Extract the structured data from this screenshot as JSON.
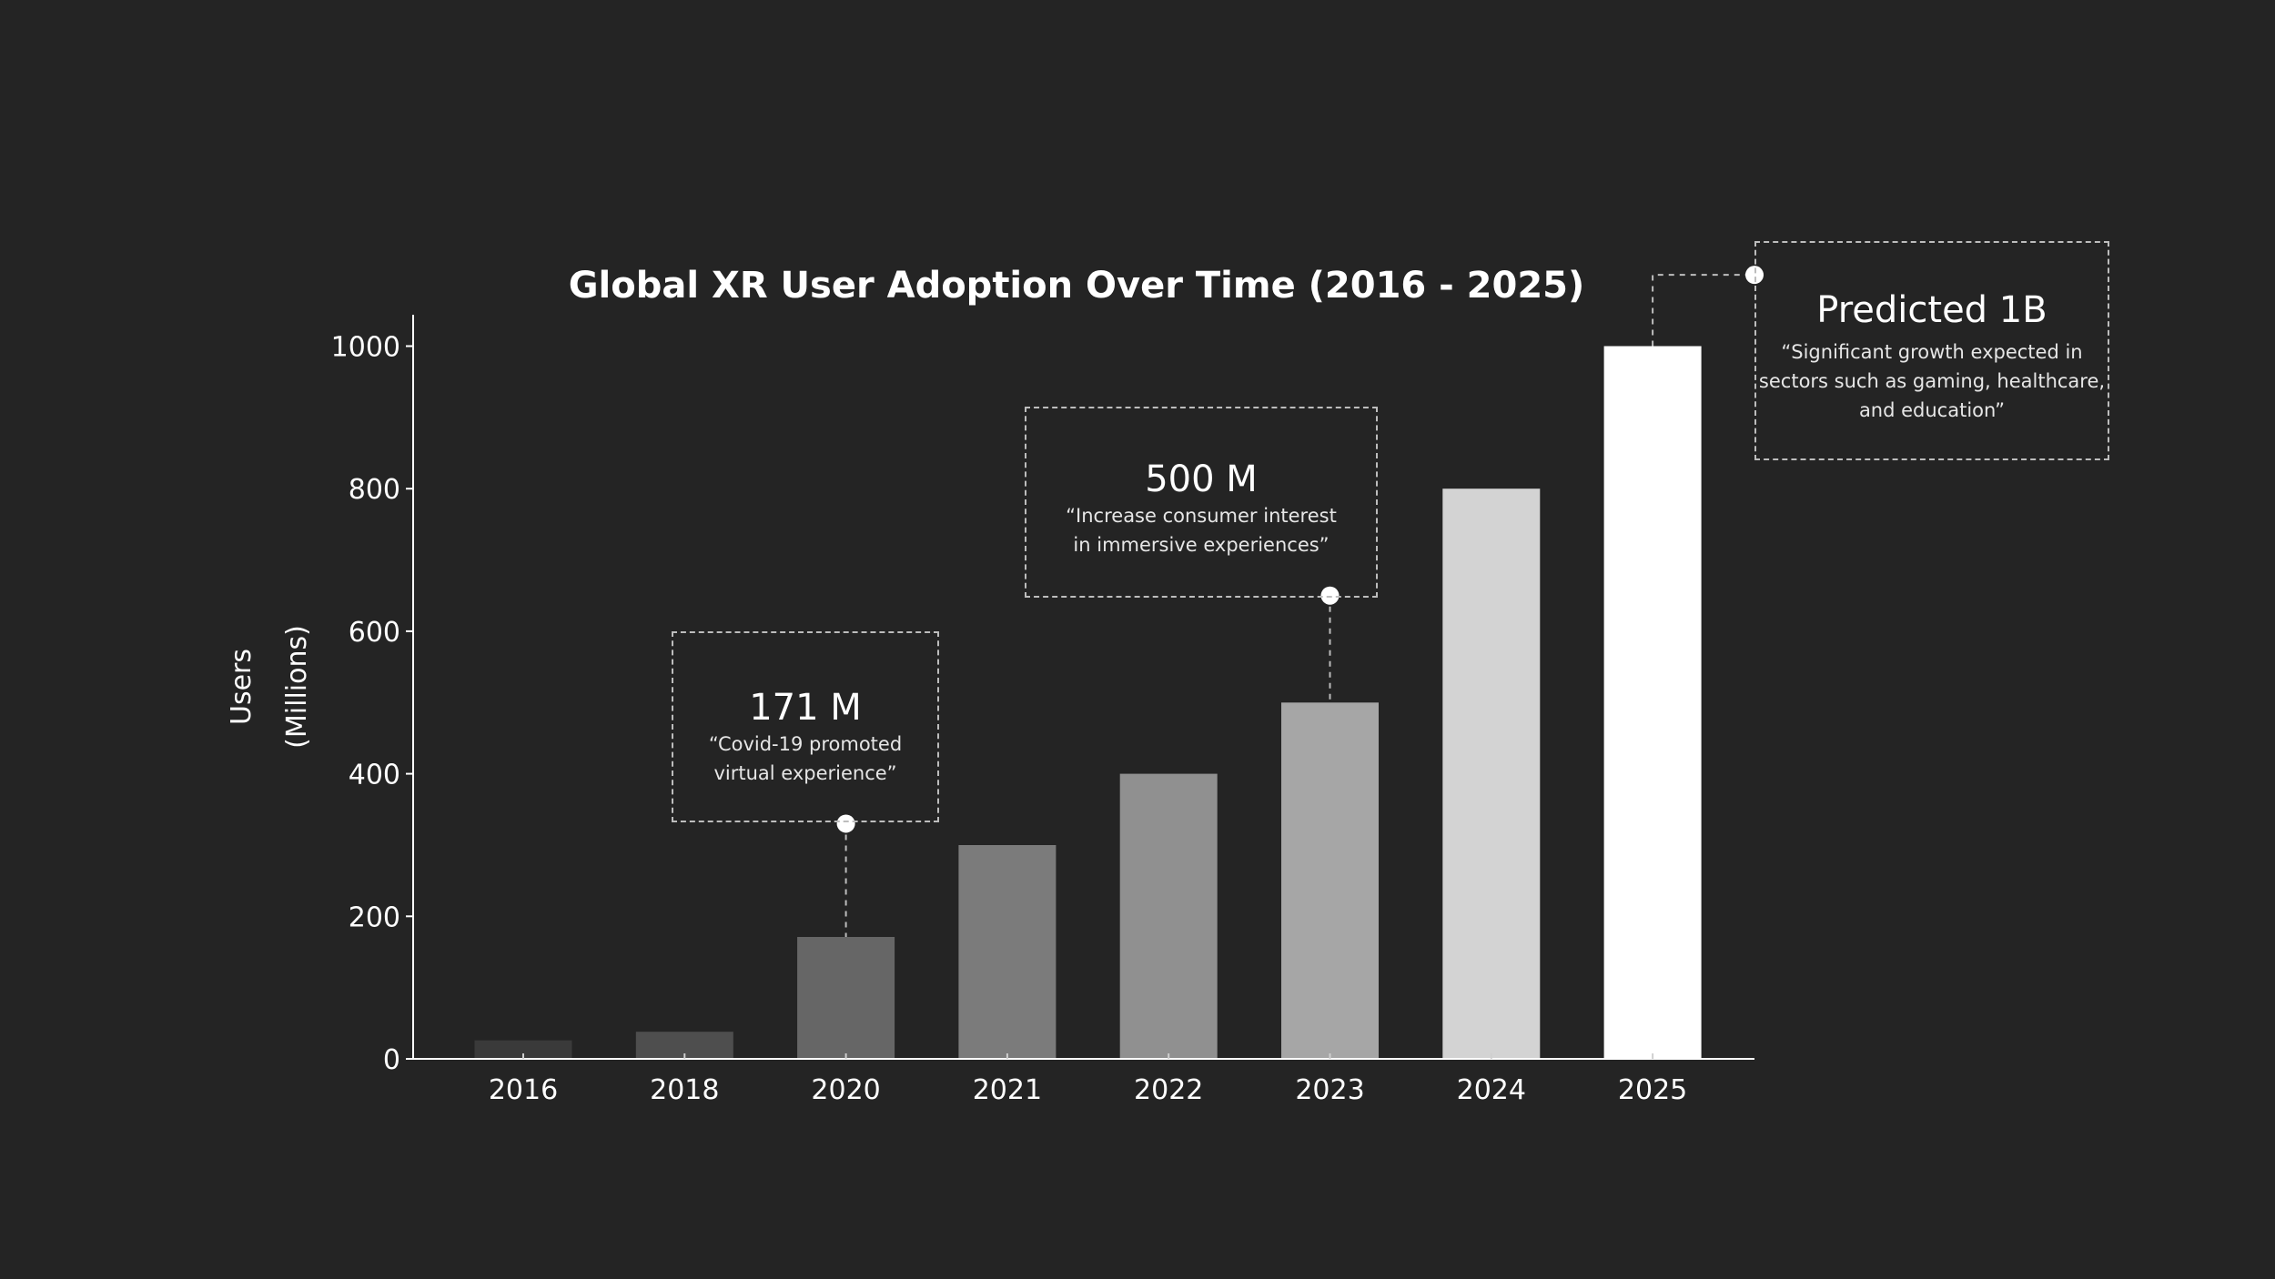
{
  "chart_data": {
    "type": "bar",
    "title": "Global XR User Adoption Over Time (2016 - 2025)",
    "xlabel": "",
    "ylabel_line1": "Users",
    "ylabel_line2": "(Millions)",
    "categories": [
      "2016",
      "2018",
      "2020",
      "2021",
      "2022",
      "2023",
      "2024",
      "2025"
    ],
    "values": [
      26,
      38,
      171,
      300,
      400,
      500,
      800,
      1000
    ],
    "bar_colors": [
      "#3a3a3a",
      "#4e4e4e",
      "#666666",
      "#7b7b7b",
      "#909090",
      "#a6a6a6",
      "#d3d3d3",
      "#ffffff"
    ],
    "ylim": [
      0,
      1050
    ],
    "yticks": [
      0,
      200,
      400,
      600,
      800,
      1000
    ],
    "grid": false,
    "annotations": [
      {
        "category": "2020",
        "anchor_value": 330,
        "headline": "171 M",
        "quote_line1": "“Covid-19 promoted",
        "quote_line2": "virtual experience”"
      },
      {
        "category": "2023",
        "anchor_value": 650,
        "headline": "500 M",
        "quote_line1": "“Increase consumer interest",
        "quote_line2": "in immersive experiences”"
      },
      {
        "category": "2025",
        "anchor_value": 1100,
        "headline": "Predicted 1B",
        "quote_line1": "“Significant growth expected in",
        "quote_line2": "sectors such as gaming, healthcare,",
        "quote_line3": "and education”"
      }
    ]
  },
  "colors": {
    "background": "#242424",
    "axis": "#ffffff",
    "text": "#ffffff",
    "annotation_border": "#bdbdbd"
  }
}
